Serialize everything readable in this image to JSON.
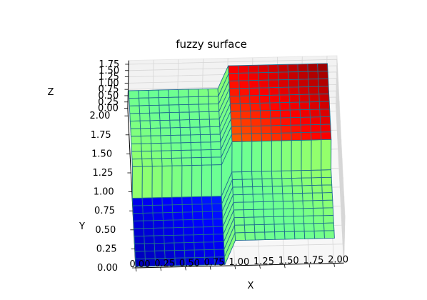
{
  "chart_data": {
    "type": "surface3d",
    "title": "fuzzy surface",
    "xlabel": "X",
    "ylabel": "Y",
    "zlabel": "Z",
    "xlim": [
      0,
      2.1
    ],
    "ylim": [
      0,
      2.1
    ],
    "zlim": [
      0,
      1.9
    ],
    "xticks": [
      "0.00",
      "0.25",
      "0.50",
      "0.75",
      "1.00",
      "1.25",
      "1.50",
      "1.75",
      "2.00"
    ],
    "yticks": [
      "0.00",
      "0.25",
      "0.50",
      "0.75",
      "1.00",
      "1.25",
      "1.50",
      "1.75",
      "2.00"
    ],
    "zticks": [
      "0.00",
      "0.25",
      "0.50",
      "0.75",
      "1.00",
      "1.25",
      "1.50",
      "1.75"
    ],
    "grid": true,
    "colormap": "jet",
    "surface": {
      "x_range": [
        0,
        2
      ],
      "y_range": [
        0,
        2
      ],
      "nx": 20,
      "ny": 20,
      "z_levels": [
        {
          "region": "x < 1 and y < 1",
          "z": 0.05
        },
        {
          "region": "x >= 1 and y >= 1",
          "z": 1.9
        },
        {
          "region": "otherwise",
          "z": 1.0
        }
      ]
    },
    "colors": {
      "edge": "#1f6f8f",
      "pane": "#f2f2f2"
    }
  }
}
